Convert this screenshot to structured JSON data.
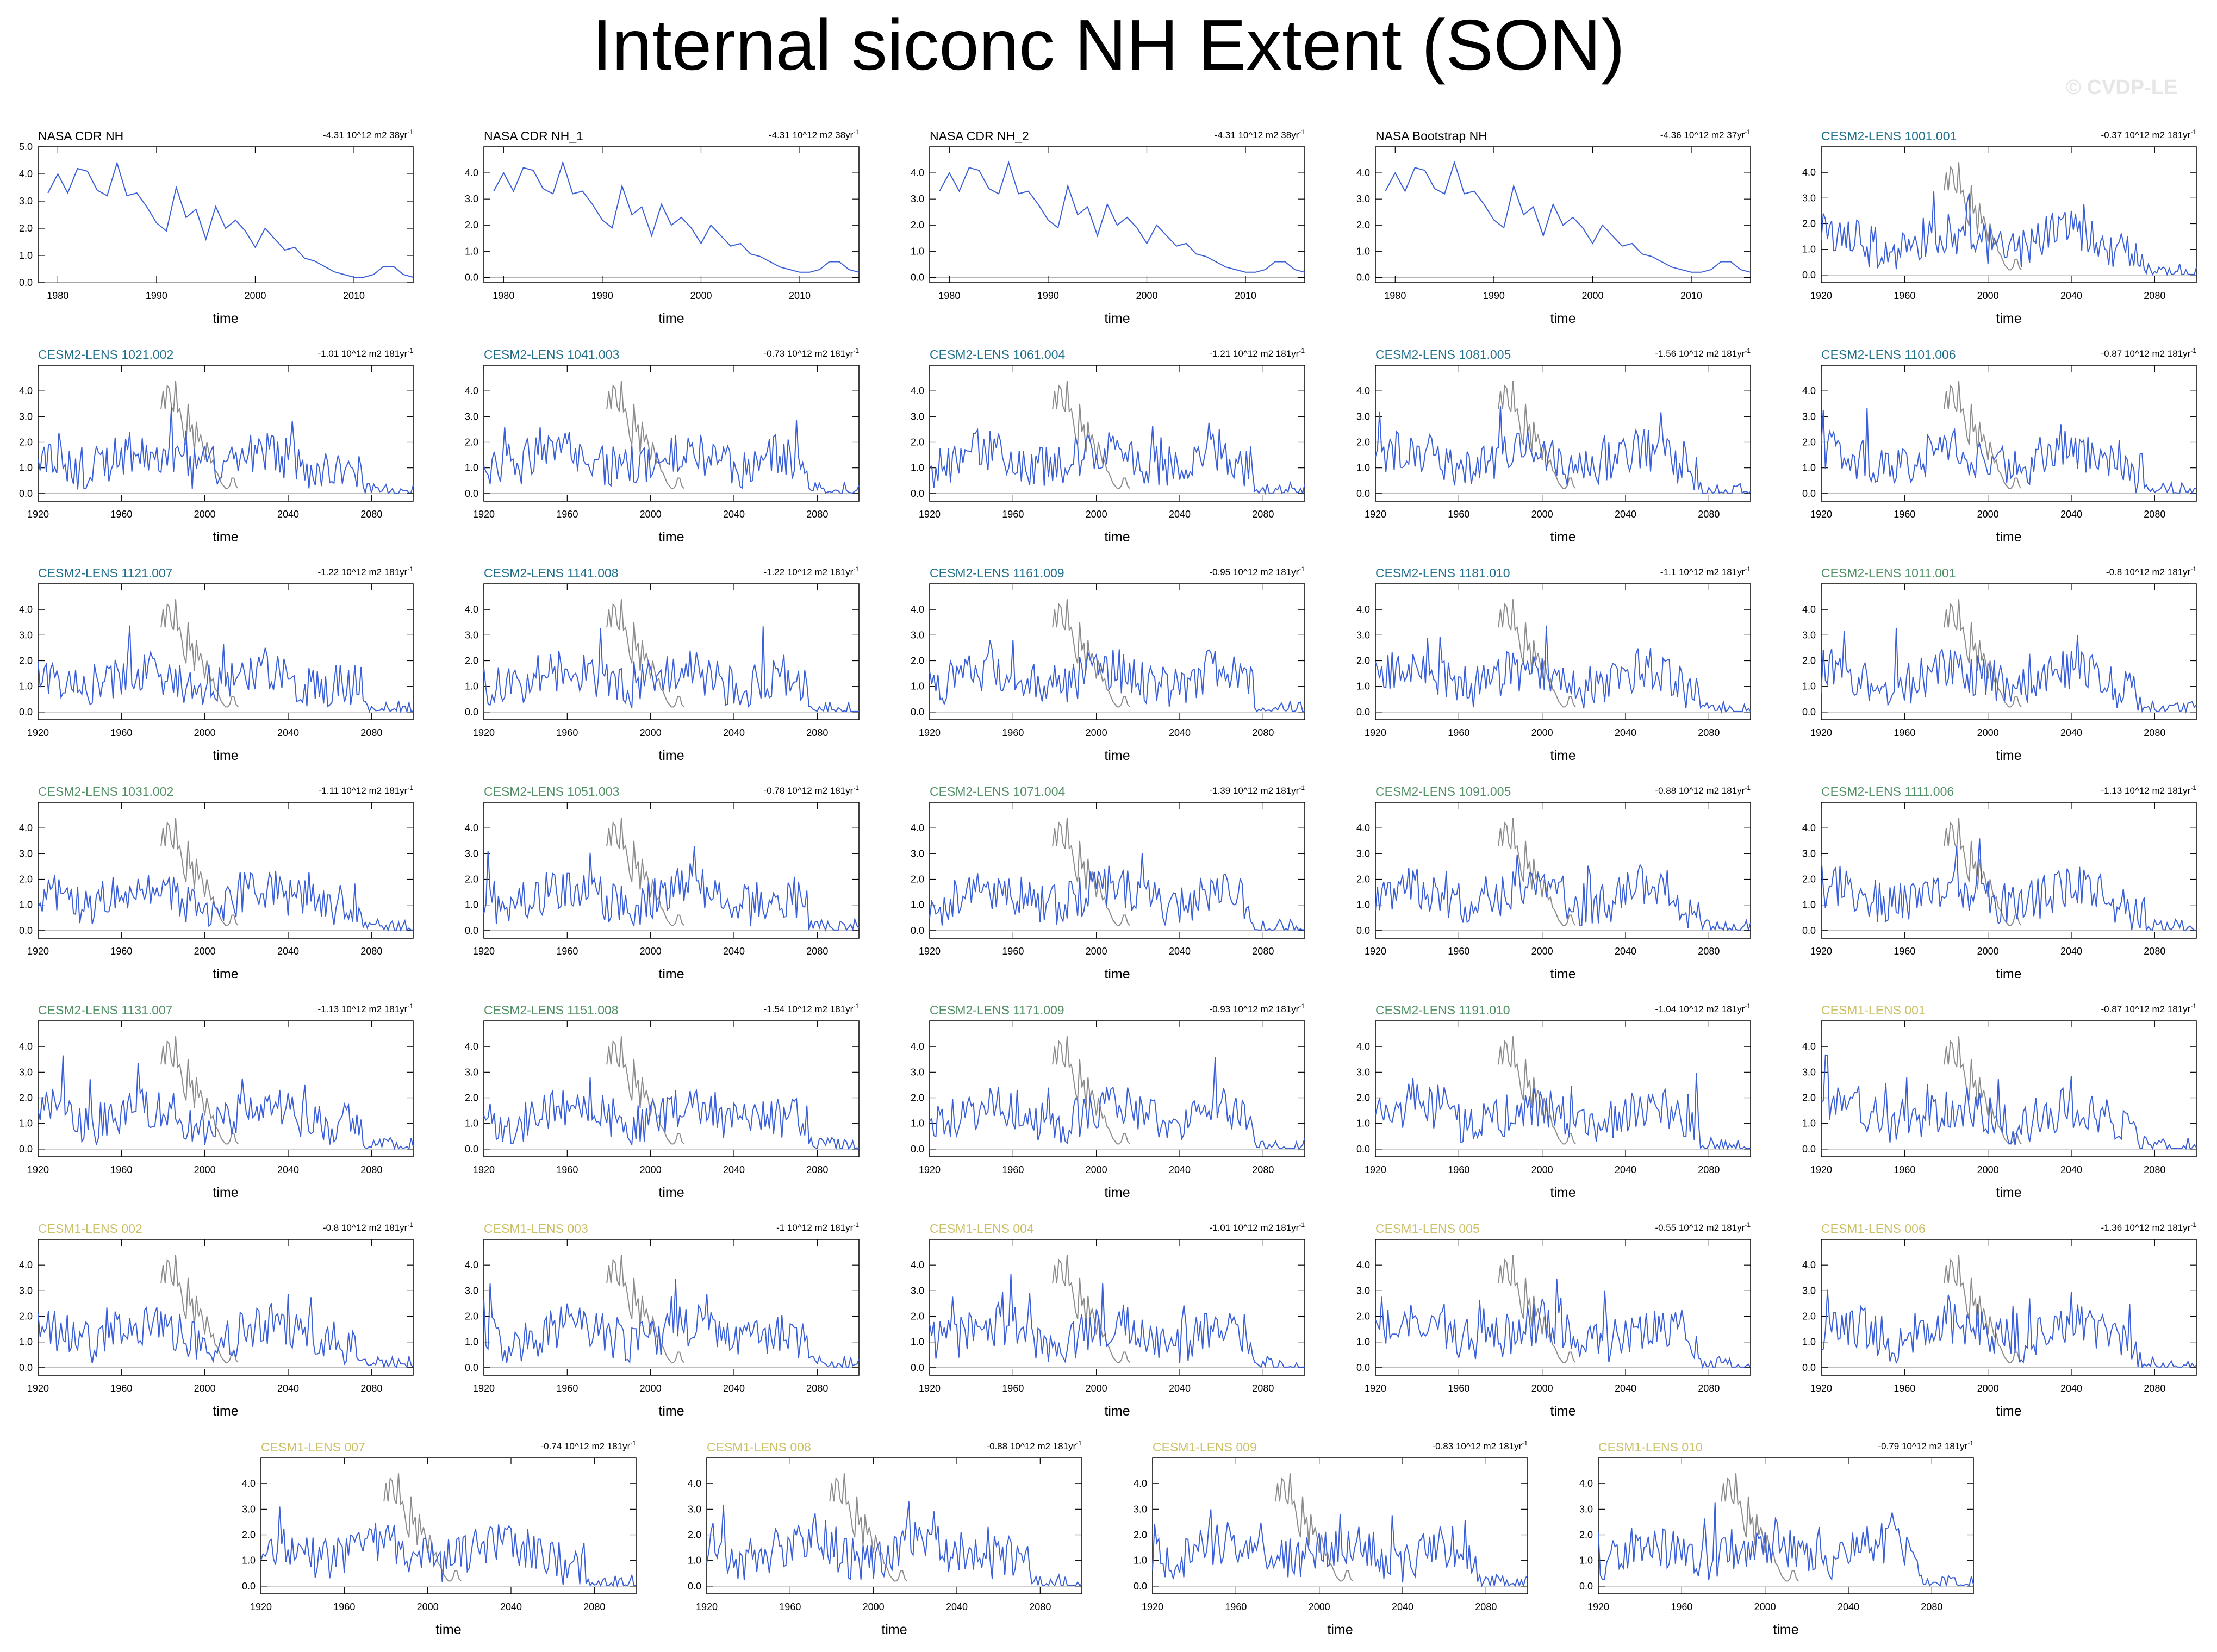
{
  "title": "Internal siconc NH Extent (SON)",
  "watermark": "© CVDP-LE",
  "colors": {
    "series": "#3a5fd9",
    "obs": "#8c8c8c",
    "zero_line": "#b4b4b4",
    "obs_label": "#000000",
    "cesm2_a": "#1f6f8b",
    "cesm2_b": "#4f8f63",
    "cesm1": "#cbbf66"
  },
  "chart_data": {
    "type": "line",
    "grid": false,
    "xlabel": "time",
    "obs_panels": {
      "xlim": [
        1978,
        2016
      ],
      "xticks": [
        1980,
        1990,
        2000,
        2010
      ],
      "values_1979_2016": [
        3.3,
        4.0,
        3.3,
        4.2,
        4.1,
        3.4,
        3.2,
        4.4,
        3.2,
        3.3,
        2.8,
        2.2,
        1.9,
        3.5,
        2.4,
        2.7,
        1.6,
        2.8,
        2.0,
        2.3,
        1.9,
        1.3,
        2.0,
        1.6,
        1.2,
        1.3,
        0.9,
        0.8,
        0.6,
        0.4,
        0.3,
        0.2,
        0.2,
        0.3,
        0.6,
        0.6,
        0.3,
        0.2
      ],
      "panels": [
        {
          "label": "NASA CDR NH",
          "trend": "-4.31 10^12 m2 38yr",
          "ylim": [
            0,
            5
          ],
          "yticks": [
            "0.0",
            "1.0",
            "2.0",
            "3.0",
            "4.0",
            "5.0"
          ]
        },
        {
          "label": "NASA CDR NH_1",
          "trend": "-4.31 10^12 m2 38yr",
          "ylim": [
            -0.2,
            5
          ],
          "yticks": [
            "0.0",
            "1.0",
            "2.0",
            "3.0",
            "4.0"
          ]
        },
        {
          "label": "NASA CDR NH_2",
          "trend": "-4.31 10^12 m2 38yr",
          "ylim": [
            -0.2,
            5
          ],
          "yticks": [
            "0.0",
            "1.0",
            "2.0",
            "3.0",
            "4.0"
          ]
        },
        {
          "label": "NASA Bootstrap NH",
          "trend": "-4.36 10^12 m2 37yr",
          "ylim": [
            -0.2,
            5
          ],
          "yticks": [
            "0.0",
            "1.0",
            "2.0",
            "3.0",
            "4.0"
          ]
        }
      ]
    },
    "ensemble_panels": {
      "xlim": [
        1920,
        2100
      ],
      "xticks": [
        1920,
        1960,
        2000,
        2040,
        2080
      ],
      "ylim": [
        -0.3,
        5
      ],
      "yticks": [
        "0.0",
        "1.0",
        "2.0",
        "3.0",
        "4.0"
      ],
      "obs_overlay_start_year": 1979,
      "members": [
        {
          "label": "CESM2-LENS 1001.001",
          "trend": "-0.37 10^12 m2 181yr",
          "group": "cesm2_a"
        },
        {
          "label": "CESM2-LENS 1021.002",
          "trend": "-1.01 10^12 m2 181yr",
          "group": "cesm2_a"
        },
        {
          "label": "CESM2-LENS 1041.003",
          "trend": "-0.73 10^12 m2 181yr",
          "group": "cesm2_a"
        },
        {
          "label": "CESM2-LENS 1061.004",
          "trend": "-1.21 10^12 m2 181yr",
          "group": "cesm2_a"
        },
        {
          "label": "CESM2-LENS 1081.005",
          "trend": "-1.56 10^12 m2 181yr",
          "group": "cesm2_a"
        },
        {
          "label": "CESM2-LENS 1101.006",
          "trend": "-0.87 10^12 m2 181yr",
          "group": "cesm2_a"
        },
        {
          "label": "CESM2-LENS 1121.007",
          "trend": "-1.22 10^12 m2 181yr",
          "group": "cesm2_a"
        },
        {
          "label": "CESM2-LENS 1141.008",
          "trend": "-1.22 10^12 m2 181yr",
          "group": "cesm2_a"
        },
        {
          "label": "CESM2-LENS 1161.009",
          "trend": "-0.95 10^12 m2 181yr",
          "group": "cesm2_a"
        },
        {
          "label": "CESM2-LENS 1181.010",
          "trend": "-1.1 10^12 m2 181yr",
          "group": "cesm2_a"
        },
        {
          "label": "CESM2-LENS 1011.001",
          "trend": "-0.8 10^12 m2 181yr",
          "group": "cesm2_b"
        },
        {
          "label": "CESM2-LENS 1031.002",
          "trend": "-1.11 10^12 m2 181yr",
          "group": "cesm2_b"
        },
        {
          "label": "CESM2-LENS 1051.003",
          "trend": "-0.78 10^12 m2 181yr",
          "group": "cesm2_b"
        },
        {
          "label": "CESM2-LENS 1071.004",
          "trend": "-1.39 10^12 m2 181yr",
          "group": "cesm2_b"
        },
        {
          "label": "CESM2-LENS 1091.005",
          "trend": "-0.88 10^12 m2 181yr",
          "group": "cesm2_b"
        },
        {
          "label": "CESM2-LENS 1111.006",
          "trend": "-1.13 10^12 m2 181yr",
          "group": "cesm2_b"
        },
        {
          "label": "CESM2-LENS 1131.007",
          "trend": "-1.13 10^12 m2 181yr",
          "group": "cesm2_b"
        },
        {
          "label": "CESM2-LENS 1151.008",
          "trend": "-1.54 10^12 m2 181yr",
          "group": "cesm2_b"
        },
        {
          "label": "CESM2-LENS 1171.009",
          "trend": "-0.93 10^12 m2 181yr",
          "group": "cesm2_b"
        },
        {
          "label": "CESM2-LENS 1191.010",
          "trend": "-1.04 10^12 m2 181yr",
          "group": "cesm2_b"
        },
        {
          "label": "CESM1-LENS 001",
          "trend": "-0.87 10^12 m2 181yr",
          "group": "cesm1"
        },
        {
          "label": "CESM1-LENS 002",
          "trend": "-0.8 10^12 m2 181yr",
          "group": "cesm1"
        },
        {
          "label": "CESM1-LENS 003",
          "trend": "-1 10^12 m2 181yr",
          "group": "cesm1"
        },
        {
          "label": "CESM1-LENS 004",
          "trend": "-1.01 10^12 m2 181yr",
          "group": "cesm1"
        },
        {
          "label": "CESM1-LENS 005",
          "trend": "-0.55 10^12 m2 181yr",
          "group": "cesm1"
        },
        {
          "label": "CESM1-LENS 006",
          "trend": "-1.36 10^12 m2 181yr",
          "group": "cesm1"
        },
        {
          "label": "CESM1-LENS 007",
          "trend": "-0.74 10^12 m2 181yr",
          "group": "cesm1"
        },
        {
          "label": "CESM1-LENS 008",
          "trend": "-0.88 10^12 m2 181yr",
          "group": "cesm1"
        },
        {
          "label": "CESM1-LENS 009",
          "trend": "-0.83 10^12 m2 181yr",
          "group": "cesm1"
        },
        {
          "label": "CESM1-LENS 010",
          "trend": "-0.79 10^12 m2 181yr",
          "group": "cesm1"
        }
      ]
    }
  }
}
